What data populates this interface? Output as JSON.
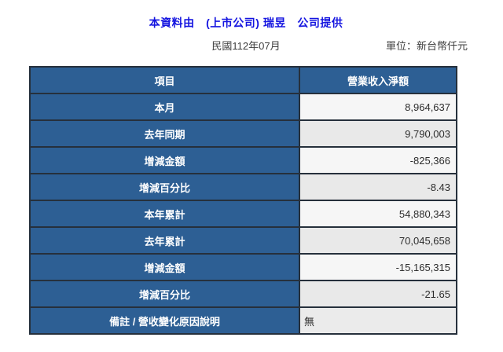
{
  "header": {
    "title": "本資料由　(上市公司) 瑞昱　公司提供",
    "period": "民國112年07月",
    "unit": "單位：新台幣仟元"
  },
  "table": {
    "columns": [
      "項目",
      "營業收入淨額"
    ],
    "rows": [
      {
        "label": "本月",
        "value": "8,964,637"
      },
      {
        "label": "去年同期",
        "value": "9,790,003"
      },
      {
        "label": "增減金額",
        "value": "-825,366"
      },
      {
        "label": "增減百分比",
        "value": "-8.43"
      },
      {
        "label": "本年累計",
        "value": "54,880,343"
      },
      {
        "label": "去年累計",
        "value": "70,045,658"
      },
      {
        "label": "增減金額",
        "value": "-15,165,315"
      },
      {
        "label": "增減百分比",
        "value": "-21.65"
      },
      {
        "label": "備註 / 營收變化原因說明",
        "value": "無"
      }
    ]
  },
  "colors": {
    "title_blue": "#1414E0",
    "header_blue": "#2D5F94",
    "row_light": "#F6F6F6",
    "row_shade": "#E9E9E9",
    "border": "#26303C"
  }
}
